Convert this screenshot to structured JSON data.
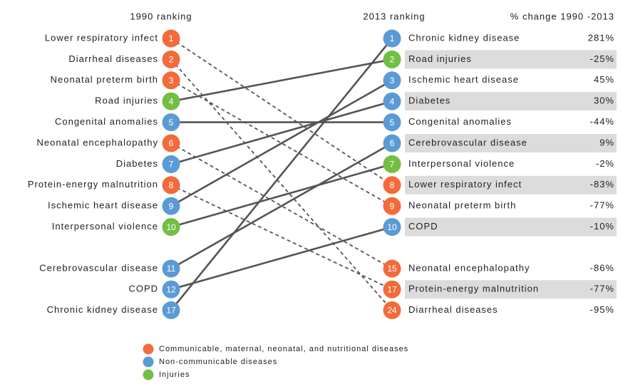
{
  "headers": {
    "left": "1990 ranking",
    "right": "2013 ranking",
    "change": "% change  1990 -2013"
  },
  "left": [
    {
      "rank": 1,
      "label": "Lower respiratory infect",
      "color": "#f26b3a"
    },
    {
      "rank": 2,
      "label": "Diarrheal diseases",
      "color": "#f26b3a"
    },
    {
      "rank": 3,
      "label": "Neonatal preterm birth",
      "color": "#f26b3a"
    },
    {
      "rank": 4,
      "label": "Road injuries",
      "color": "#72bf44"
    },
    {
      "rank": 5,
      "label": "Congenital anomalies",
      "color": "#5b9bd5"
    },
    {
      "rank": 6,
      "label": "Neonatal encephalopathy",
      "color": "#f26b3a"
    },
    {
      "rank": 7,
      "label": "Diabetes",
      "color": "#5b9bd5"
    },
    {
      "rank": 8,
      "label": "Protein-energy malnutrition",
      "color": "#f26b3a"
    },
    {
      "rank": 9,
      "label": "Ischemic heart disease",
      "color": "#5b9bd5"
    },
    {
      "rank": 10,
      "label": "Interpersonal violence",
      "color": "#72bf44"
    },
    {
      "rank": 11,
      "label": "Cerebrovascular disease",
      "color": "#5b9bd5"
    },
    {
      "rank": 12,
      "label": "COPD",
      "color": "#5b9bd5"
    },
    {
      "rank": 17,
      "label": "Chronic kidney disease",
      "color": "#5b9bd5"
    }
  ],
  "right": [
    {
      "rank": 1,
      "label": "Chronic kidney disease",
      "change": "281%",
      "color": "#5b9bd5"
    },
    {
      "rank": 2,
      "label": "Road injuries",
      "change": "-25%",
      "color": "#72bf44"
    },
    {
      "rank": 3,
      "label": "Ischemic heart disease",
      "change": "45%",
      "color": "#5b9bd5"
    },
    {
      "rank": 4,
      "label": "Diabetes",
      "change": "30%",
      "color": "#5b9bd5"
    },
    {
      "rank": 5,
      "label": "Congenital anomalies",
      "change": "-44%",
      "color": "#5b9bd5"
    },
    {
      "rank": 6,
      "label": "Cerebrovascular disease",
      "change": "9%",
      "color": "#5b9bd5"
    },
    {
      "rank": 7,
      "label": "Interpersonal violence",
      "change": "-2%",
      "color": "#72bf44"
    },
    {
      "rank": 8,
      "label": "Lower respiratory infect",
      "change": "-83%",
      "color": "#f26b3a"
    },
    {
      "rank": 9,
      "label": "Neonatal preterm birth",
      "change": "-77%",
      "color": "#f26b3a"
    },
    {
      "rank": 10,
      "label": "COPD",
      "change": "-10%",
      "color": "#5b9bd5"
    },
    {
      "rank": 15,
      "label": "Neonatal encephalopathy",
      "change": "-86%",
      "color": "#f26b3a"
    },
    {
      "rank": 17,
      "label": "Protein-energy malnutrition",
      "change": "-77%",
      "color": "#f26b3a"
    },
    {
      "rank": 24,
      "label": "Diarrheal diseases",
      "change": "-95%",
      "color": "#f26b3a"
    }
  ],
  "legend": [
    {
      "label": "Communicable, maternal, neonatal, and nutritional diseases",
      "color": "#f26b3a"
    },
    {
      "label": "Non-communicable diseases",
      "color": "#5b9bd5"
    },
    {
      "label": "Injuries",
      "color": "#72bf44"
    }
  ]
}
